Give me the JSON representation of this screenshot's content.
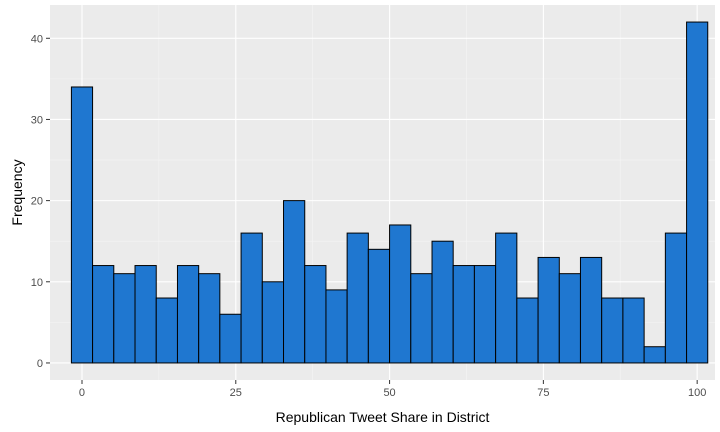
{
  "chart_data": {
    "type": "histogram",
    "xlabel": "Republican Tweet Share in District",
    "ylabel": "Frequency",
    "xlim": [
      -5.2,
      102.9
    ],
    "ylim": [
      -2.1,
      44.1
    ],
    "x_ticks": [
      0,
      25,
      50,
      75,
      100
    ],
    "y_ticks": [
      0,
      10,
      20,
      30,
      40
    ],
    "bin_width": 3.45,
    "bins": [
      {
        "x0": -1.72,
        "x1": 1.72,
        "count": 34
      },
      {
        "x0": 1.72,
        "x1": 5.17,
        "count": 12
      },
      {
        "x0": 5.17,
        "x1": 8.62,
        "count": 11
      },
      {
        "x0": 8.62,
        "x1": 12.07,
        "count": 12
      },
      {
        "x0": 12.07,
        "x1": 15.52,
        "count": 8
      },
      {
        "x0": 15.52,
        "x1": 18.97,
        "count": 12
      },
      {
        "x0": 18.97,
        "x1": 22.41,
        "count": 11
      },
      {
        "x0": 22.41,
        "x1": 25.86,
        "count": 6
      },
      {
        "x0": 25.86,
        "x1": 29.31,
        "count": 16
      },
      {
        "x0": 29.31,
        "x1": 32.76,
        "count": 10
      },
      {
        "x0": 32.76,
        "x1": 36.21,
        "count": 20
      },
      {
        "x0": 36.21,
        "x1": 39.66,
        "count": 12
      },
      {
        "x0": 39.66,
        "x1": 43.1,
        "count": 9
      },
      {
        "x0": 43.1,
        "x1": 46.55,
        "count": 16
      },
      {
        "x0": 46.55,
        "x1": 50.0,
        "count": 14
      },
      {
        "x0": 50.0,
        "x1": 53.45,
        "count": 17
      },
      {
        "x0": 53.45,
        "x1": 56.9,
        "count": 11
      },
      {
        "x0": 56.9,
        "x1": 60.34,
        "count": 15
      },
      {
        "x0": 60.34,
        "x1": 63.79,
        "count": 12
      },
      {
        "x0": 63.79,
        "x1": 67.24,
        "count": 12
      },
      {
        "x0": 67.24,
        "x1": 70.69,
        "count": 16
      },
      {
        "x0": 70.69,
        "x1": 74.14,
        "count": 8
      },
      {
        "x0": 74.14,
        "x1": 77.59,
        "count": 13
      },
      {
        "x0": 77.59,
        "x1": 81.03,
        "count": 11
      },
      {
        "x0": 81.03,
        "x1": 84.48,
        "count": 13
      },
      {
        "x0": 84.48,
        "x1": 87.93,
        "count": 8
      },
      {
        "x0": 87.93,
        "x1": 91.38,
        "count": 8
      },
      {
        "x0": 91.38,
        "x1": 94.83,
        "count": 2
      },
      {
        "x0": 94.83,
        "x1": 98.28,
        "count": 16
      },
      {
        "x0": 98.28,
        "x1": 101.72,
        "count": 42
      }
    ],
    "grid": true,
    "legend": "none",
    "colors": {
      "bar_fill": "#1f77d0",
      "bar_stroke": "#000000",
      "panel_bg": "#ebebeb",
      "grid_major": "#ffffff",
      "grid_minor": "#f5f5f5"
    }
  }
}
